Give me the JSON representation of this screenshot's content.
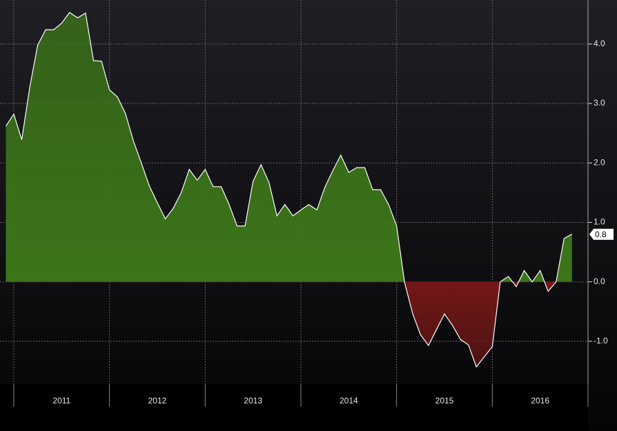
{
  "chart_data": {
    "type": "area",
    "x": [
      2010.917,
      2011.0,
      2011.083,
      2011.167,
      2011.25,
      2011.333,
      2011.417,
      2011.5,
      2011.583,
      2011.667,
      2011.75,
      2011.833,
      2011.917,
      2012.0,
      2012.083,
      2012.167,
      2012.25,
      2012.333,
      2012.417,
      2012.5,
      2012.583,
      2012.667,
      2012.75,
      2012.833,
      2012.917,
      2013.0,
      2013.083,
      2013.167,
      2013.25,
      2013.333,
      2013.417,
      2013.5,
      2013.583,
      2013.667,
      2013.75,
      2013.833,
      2013.917,
      2014.0,
      2014.083,
      2014.167,
      2014.25,
      2014.333,
      2014.417,
      2014.5,
      2014.583,
      2014.667,
      2014.75,
      2014.833,
      2014.917,
      2015.0,
      2015.083,
      2015.167,
      2015.25,
      2015.333,
      2015.417,
      2015.5,
      2015.583,
      2015.667,
      2015.75,
      2015.833,
      2015.917,
      2016.0,
      2016.083,
      2016.167,
      2016.25,
      2016.333,
      2016.417,
      2016.5,
      2016.583,
      2016.667,
      2016.75,
      2016.833
    ],
    "values": [
      2.62,
      2.82,
      2.39,
      3.27,
      3.98,
      4.24,
      4.24,
      4.35,
      4.53,
      4.44,
      4.52,
      3.72,
      3.71,
      3.23,
      3.11,
      2.83,
      2.37,
      2.0,
      1.61,
      1.33,
      1.06,
      1.24,
      1.5,
      1.89,
      1.71,
      1.89,
      1.6,
      1.6,
      1.3,
      0.94,
      0.94,
      1.69,
      1.97,
      1.67,
      1.11,
      1.3,
      1.11,
      1.21,
      1.3,
      1.21,
      1.59,
      1.87,
      2.13,
      1.84,
      1.92,
      1.92,
      1.55,
      1.55,
      1.3,
      0.94,
      -0.01,
      -0.53,
      -0.89,
      -1.07,
      -0.8,
      -0.54,
      -0.73,
      -0.97,
      -1.06,
      -1.43,
      -1.26,
      -1.09,
      0.0,
      0.09,
      -0.08,
      0.19,
      0.0,
      0.19,
      -0.16,
      0.0,
      0.73,
      0.8
    ],
    "last_value_label": "0.8",
    "xlim": [
      2010.856,
      2017.0
    ],
    "xticks": [
      2011,
      2012,
      2013,
      2014,
      2015,
      2016
    ],
    "ylim": [
      -1.72,
      4.74
    ],
    "yticks": [
      {
        "value": 4,
        "label": "4.0"
      },
      {
        "value": 3,
        "label": "3.0"
      },
      {
        "value": 2,
        "label": "2.0"
      },
      {
        "value": 1,
        "label": "1.0"
      },
      {
        "value": 0,
        "label": "0.0"
      },
      {
        "value": -1,
        "label": "-1.0"
      }
    ],
    "grid": true,
    "positive_color": "#3d7619",
    "negative_color": "#741717",
    "line_color": "#ffffff"
  }
}
